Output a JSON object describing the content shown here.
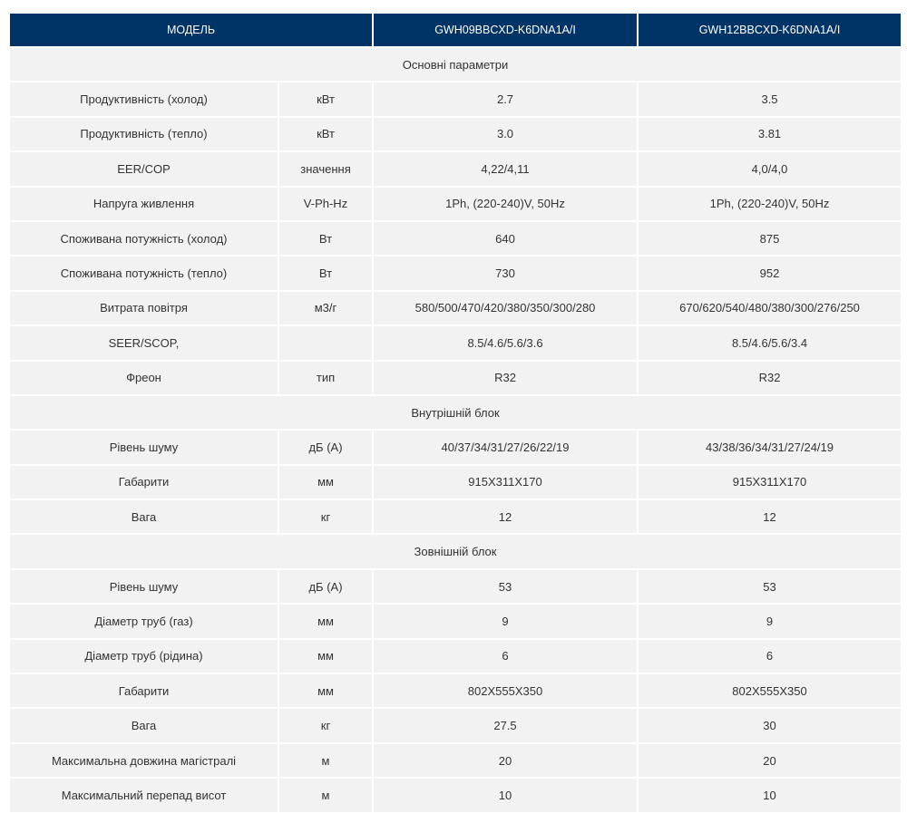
{
  "header": {
    "model_label": "МОДЕЛЬ",
    "models": [
      "GWH09BBCXD-K6DNA1A/I",
      "GWH12BBCXD-K6DNA1A/I"
    ]
  },
  "sections": [
    {
      "title": "Основні параметри",
      "rows": [
        {
          "param": "Продуктивність (холод)",
          "unit": "кВт",
          "values": [
            "2.7",
            "3.5"
          ]
        },
        {
          "param": "Продуктивність (тепло)",
          "unit": "кВт",
          "values": [
            "3.0",
            "3.81"
          ]
        },
        {
          "param": "EER/COP",
          "unit": "значення",
          "values": [
            "4,22/4,11",
            "4,0/4,0"
          ]
        },
        {
          "param": "Напруга живлення",
          "unit": "V-Ph-Hz",
          "values": [
            "1Ph, (220-240)V, 50Hz",
            "1Ph, (220-240)V, 50Hz"
          ]
        },
        {
          "param": "Споживана потужність (холод)",
          "unit": "Вт",
          "values": [
            "640",
            "875"
          ]
        },
        {
          "param": "Споживана потужність (тепло)",
          "unit": "Вт",
          "values": [
            "730",
            "952"
          ]
        },
        {
          "param": "Витрата повітря",
          "unit": "м3/г",
          "values": [
            "580/500/470/420/380/350/300/280",
            "670/620/540/480/380/300/276/250"
          ]
        },
        {
          "param": "SEER/SCOP,",
          "unit": "",
          "values": [
            "8.5/4.6/5.6/3.6",
            "8.5/4.6/5.6/3.4"
          ]
        },
        {
          "param": "Фреон",
          "unit": "тип",
          "values": [
            "R32",
            "R32"
          ]
        }
      ]
    },
    {
      "title": "Внутрішній блок",
      "rows": [
        {
          "param": "Рівень шуму",
          "unit": "дБ (А)",
          "values": [
            "40/37/34/31/27/26/22/19",
            "43/38/36/34/31/27/24/19"
          ]
        },
        {
          "param": "Габарити",
          "unit": "мм",
          "values": [
            "915X311X170",
            "915X311X170"
          ]
        },
        {
          "param": "Вага",
          "unit": "кг",
          "values": [
            "12",
            "12"
          ]
        }
      ]
    },
    {
      "title": "Зовнішній блок",
      "rows": [
        {
          "param": "Рівень шуму",
          "unit": "дБ (А)",
          "values": [
            "53",
            "53"
          ]
        },
        {
          "param": "Діаметр труб (газ)",
          "unit": "мм",
          "values": [
            "9",
            "9"
          ]
        },
        {
          "param": "Діаметр труб (рідина)",
          "unit": "мм",
          "values": [
            "6",
            "6"
          ]
        },
        {
          "param": "Габарити",
          "unit": "мм",
          "values": [
            "802X555X350",
            "802X555X350"
          ]
        },
        {
          "param": "Вага",
          "unit": "кг",
          "values": [
            "27.5",
            "30"
          ]
        },
        {
          "param": "Максимальна довжина магістралі",
          "unit": "м",
          "values": [
            "20",
            "20"
          ]
        },
        {
          "param": "Максимальний перепад висот",
          "unit": "м",
          "values": [
            "10",
            "10"
          ]
        }
      ]
    }
  ],
  "colors": {
    "header_bg": "#003366",
    "cell_bg": "#f2f2f2",
    "text": "#333333"
  }
}
